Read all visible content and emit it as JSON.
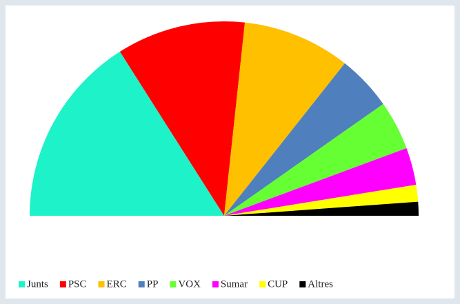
{
  "chart_data": {
    "type": "pie",
    "half": true,
    "categories": [
      "Junts",
      "PSC",
      "ERC",
      "PP",
      "VOX",
      "Sumar",
      "CUP",
      "Altres"
    ],
    "values": [
      32,
      21.4,
      17.9,
      9.2,
      8.2,
      6.2,
      2.8,
      2.3
    ],
    "colors": [
      "#1ef2c8",
      "#ff0000",
      "#ffc000",
      "#4f7fbd",
      "#66ff33",
      "#ff00ff",
      "#ffff00",
      "#000000"
    ],
    "legend": "bottom"
  }
}
